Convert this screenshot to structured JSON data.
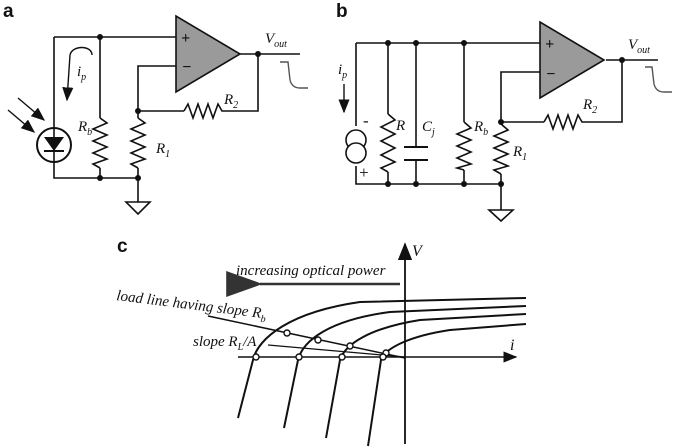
{
  "panels": {
    "a": {
      "label": "a",
      "photocurrent": "i",
      "photocurrent_sub": "p",
      "rb": "R",
      "rb_sub": "b",
      "r1": "R",
      "r1_sub": "1",
      "r2": "R",
      "r2_sub": "2",
      "vout": "V",
      "vout_sub": "out",
      "plus": "+",
      "minus": "−"
    },
    "b": {
      "label": "b",
      "photocurrent": "i",
      "photocurrent_sub": "p",
      "r": "R",
      "cj": "C",
      "cj_sub": "j",
      "rb": "R",
      "rb_sub": "b",
      "r1": "R",
      "r1_sub": "1",
      "r2": "R",
      "r2_sub": "2",
      "vout": "V",
      "vout_sub": "out",
      "plus": "+",
      "minus": "−",
      "src_minus": "-",
      "src_plus": "+"
    },
    "c": {
      "label": "c",
      "axis_v": "V",
      "axis_i": "i",
      "arrow_text": "increasing optical power",
      "load_line_text": "load line having slope R",
      "load_line_sub": "b",
      "slope_text": "slope R",
      "slope_sub": "L",
      "slope_suffix": "/A"
    }
  }
}
